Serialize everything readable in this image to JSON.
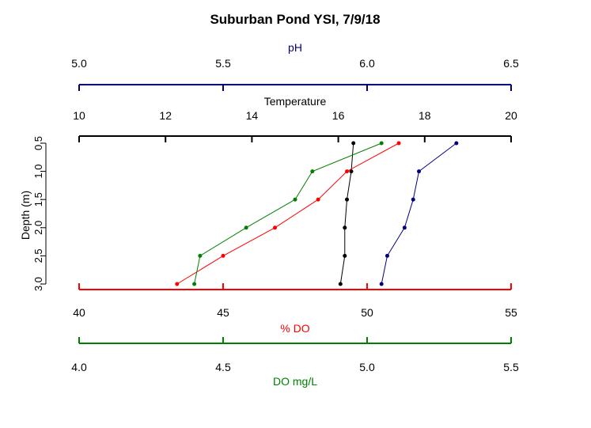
{
  "chart_data": {
    "type": "line",
    "title": "Suburban Pond YSI, 7/9/18",
    "ylabel": "Depth (m)",
    "y": [
      0.5,
      1.0,
      1.5,
      2.0,
      2.5,
      3.0
    ],
    "ytick_labels": [
      "0.5",
      "1.0",
      "1.5",
      "2.0",
      "2.5",
      "3.0"
    ],
    "ylim": [
      0.5,
      3.0
    ],
    "axes": [
      {
        "key": "ph",
        "label": "pH",
        "position": "top",
        "color": "#00007F",
        "range": [
          5.0,
          6.5
        ],
        "ticks": [
          5.0,
          5.5,
          6.0,
          6.5
        ],
        "tick_labels": [
          "5.0",
          "5.5",
          "6.0",
          "6.5"
        ]
      },
      {
        "key": "temp",
        "label": "Temperature",
        "position": "top",
        "color": "#000000",
        "range": [
          10,
          20
        ],
        "ticks": [
          10,
          12,
          14,
          16,
          18,
          20
        ],
        "tick_labels": [
          "10",
          "12",
          "14",
          "16",
          "18",
          "20"
        ]
      },
      {
        "key": "do_pct",
        "label": "% DO",
        "position": "bottom",
        "color": "#FF0000",
        "range": [
          40,
          55
        ],
        "ticks": [
          40,
          45,
          50,
          55
        ],
        "tick_labels": [
          "40",
          "45",
          "50",
          "55"
        ]
      },
      {
        "key": "do_mgl",
        "label": "DO mg/L",
        "position": "bottom",
        "color": "#008000",
        "range": [
          4.0,
          5.5
        ],
        "ticks": [
          4.0,
          4.5,
          5.0,
          5.5
        ],
        "tick_labels": [
          "4.0",
          "4.5",
          "5.0",
          "5.5"
        ]
      }
    ],
    "series": [
      {
        "axis": "ph",
        "color": "#00007F",
        "values": [
          6.31,
          6.18,
          6.16,
          6.13,
          6.07,
          6.05
        ]
      },
      {
        "axis": "temp",
        "color": "#000000",
        "values": [
          16.35,
          16.3,
          16.2,
          16.15,
          16.15,
          16.05
        ]
      },
      {
        "axis": "do_pct",
        "color": "#FF0000",
        "values": [
          51.1,
          49.3,
          48.3,
          46.8,
          45.0,
          43.4
        ]
      },
      {
        "axis": "do_mgl",
        "color": "#008000",
        "values": [
          5.05,
          4.81,
          4.75,
          4.58,
          4.42,
          4.4
        ]
      }
    ]
  }
}
